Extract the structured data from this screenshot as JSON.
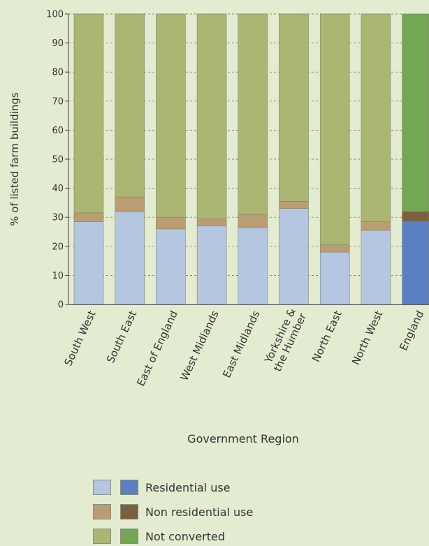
{
  "chart_data": {
    "type": "bar",
    "stacked": true,
    "title": "",
    "xlabel": "Government Region",
    "ylabel": "% of listed farm buildings",
    "ylim": [
      0,
      100
    ],
    "yticks": [
      0,
      10,
      20,
      30,
      40,
      50,
      60,
      70,
      80,
      90,
      100
    ],
    "grid": true,
    "legend_position": "bottom",
    "categories": [
      "South West",
      "South East",
      "East of England",
      "West Midlands",
      "East Midlands",
      "Yorkshire & the Humber",
      "North East",
      "North West",
      "England"
    ],
    "series": [
      {
        "name": "Residential use",
        "values": [
          28.5,
          32,
          26,
          27,
          26.5,
          33,
          18,
          25.5,
          28.5
        ]
      },
      {
        "name": "Non residential use",
        "values": [
          3,
          5,
          4,
          2.5,
          4.5,
          2.5,
          2.5,
          3,
          3.5
        ]
      },
      {
        "name": "Not converted",
        "values": [
          68.5,
          63,
          70,
          70.5,
          69,
          64.5,
          79.5,
          71.5,
          68
        ]
      }
    ],
    "colors": {
      "regions": [
        "#b5c6e1",
        "#bb9d73",
        "#abb672"
      ],
      "england": [
        "#5b7fc0",
        "#7a6040",
        "#75a653"
      ]
    }
  }
}
